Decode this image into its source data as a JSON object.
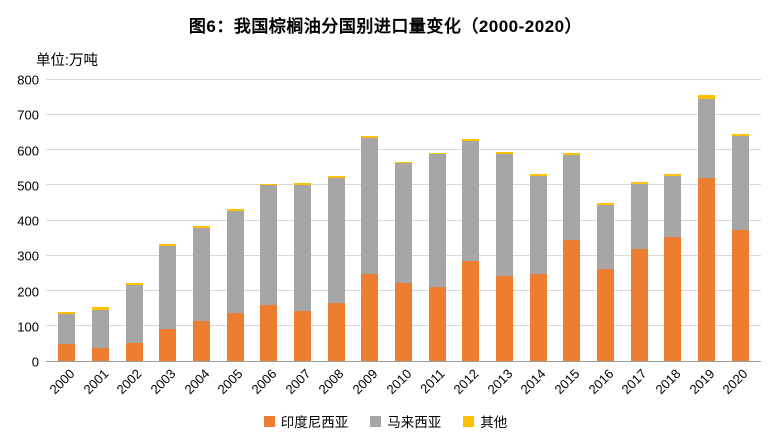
{
  "chart_data": {
    "type": "bar",
    "stacked": true,
    "title": "图6：我国棕榈油分国别进口量变化（2000-2020）",
    "unit_label": "单位:万吨",
    "categories": [
      "2000",
      "2001",
      "2002",
      "2003",
      "2004",
      "2005",
      "2006",
      "2007",
      "2008",
      "2009",
      "2010",
      "2011",
      "2012",
      "2013",
      "2014",
      "2015",
      "2016",
      "2017",
      "2018",
      "2019",
      "2020"
    ],
    "series": [
      {
        "key": "indonesia",
        "name": "印度尼西亚",
        "color": "#ED7D31",
        "values": [
          48,
          38,
          52,
          90,
          115,
          138,
          160,
          142,
          165,
          248,
          222,
          212,
          285,
          242,
          248,
          345,
          262,
          318,
          352,
          522,
          372
        ]
      },
      {
        "key": "malaysia",
        "name": "马来西亚",
        "color": "#A6A6A6",
        "values": [
          85,
          108,
          165,
          238,
          265,
          290,
          340,
          360,
          355,
          388,
          342,
          376,
          342,
          348,
          280,
          242,
          182,
          186,
          176,
          225,
          268
        ]
      },
      {
        "key": "other",
        "name": "其他",
        "color": "#FFC000",
        "values": [
          8,
          7,
          6,
          5,
          5,
          5,
          5,
          6,
          6,
          6,
          4,
          5,
          5,
          5,
          4,
          5,
          5,
          5,
          5,
          10,
          6
        ]
      }
    ],
    "ylim": [
      0,
      800
    ],
    "yticks": [
      0,
      100,
      200,
      300,
      400,
      500,
      600,
      700,
      800
    ],
    "grid": true,
    "legend_position": "bottom"
  }
}
